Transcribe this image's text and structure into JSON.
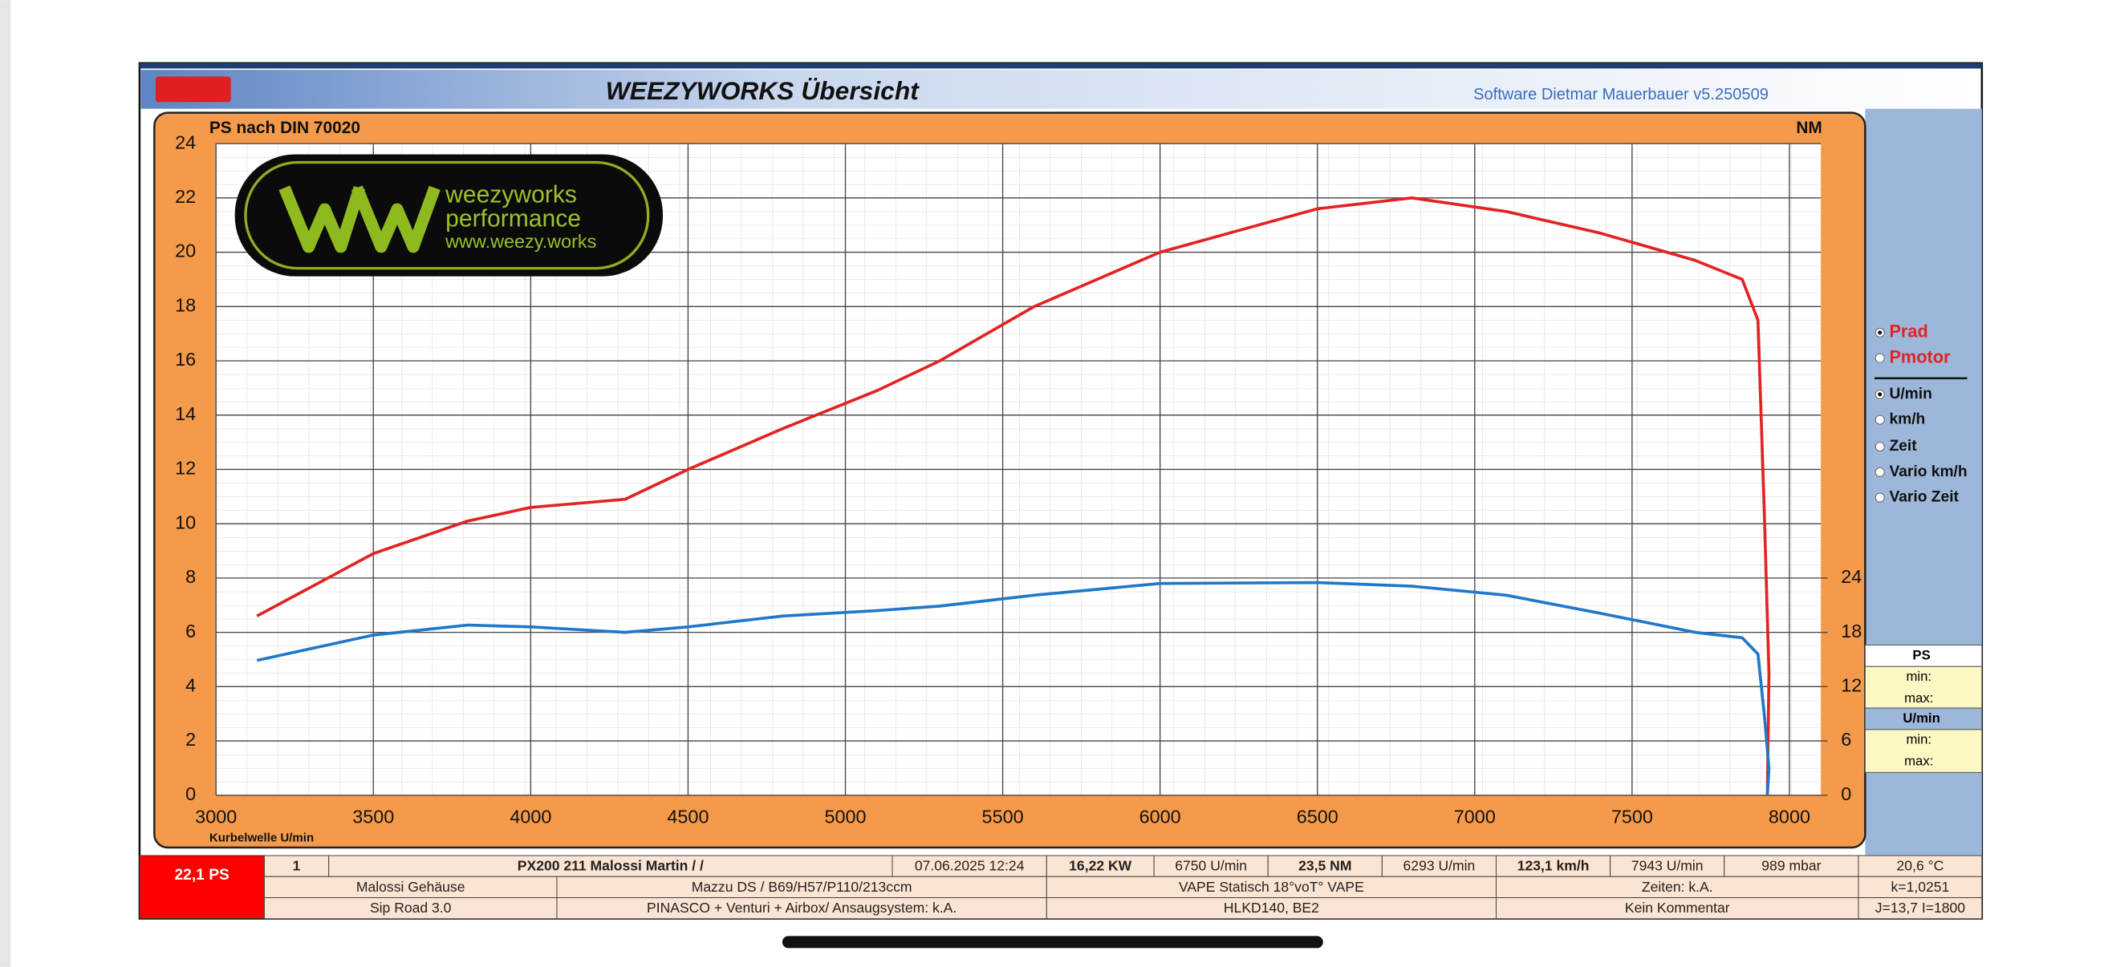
{
  "chart_data": {
    "type": "line",
    "title": "WEEZYWORKS  Übersicht",
    "y_label": "PS nach DIN 70020",
    "y2_label": "NM",
    "x_label": "Kurbelwelle U/min",
    "x": [
      3130,
      3500,
      3800,
      4000,
      4300,
      4500,
      4800,
      5100,
      5300,
      5600,
      6000,
      6500,
      6800,
      7100,
      7400,
      7700,
      7850,
      7900,
      7920,
      7935,
      7930
    ],
    "series": [
      {
        "name": "Prad",
        "color": "#e32222",
        "values": [
          6.6,
          8.9,
          10.1,
          10.6,
          10.9,
          12.0,
          13.5,
          14.9,
          16.0,
          18.0,
          20.0,
          21.6,
          22.0,
          21.5,
          20.7,
          19.7,
          19.0,
          17.5,
          10.5,
          4.5,
          0
        ]
      },
      {
        "name": "NM",
        "color": "#1f78c8",
        "axis": "y2",
        "values": [
          14.9,
          17.7,
          18.8,
          18.6,
          18.0,
          18.6,
          19.8,
          20.4,
          20.9,
          22.1,
          23.4,
          23.5,
          23.1,
          22.1,
          20.1,
          18.0,
          17.4,
          15.6,
          9.0,
          3.0,
          0
        ]
      }
    ],
    "xlim": [
      3000,
      8100
    ],
    "xticks": [
      3000,
      3500,
      4000,
      4500,
      5000,
      5500,
      6000,
      6500,
      7000,
      7500,
      8000
    ],
    "ylim": [
      0,
      24
    ],
    "yticks": [
      0,
      2,
      4,
      6,
      8,
      10,
      12,
      14,
      16,
      18,
      20,
      22,
      24
    ],
    "y2lim": [
      0,
      72
    ],
    "y2ticks": [
      0,
      6,
      12,
      18,
      24
    ],
    "grid": true
  },
  "header": {
    "software": "Software Dietmar Mauerbauer v5.250509"
  },
  "logo": {
    "line1": "weezyworks",
    "line2": "performance",
    "line3": "www.weezy.works"
  },
  "panel": {
    "options": [
      {
        "label": "Prad",
        "checked": true
      },
      {
        "label": "Pmotor",
        "checked": false
      },
      {
        "label": "U/min",
        "checked": true
      },
      {
        "label": "km/h",
        "checked": false
      },
      {
        "label": "Zeit",
        "checked": false
      },
      {
        "label": "Vario km/h",
        "checked": false
      },
      {
        "label": "Vario Zeit",
        "checked": false
      }
    ],
    "ps_header": "PS",
    "ps_min": "min:",
    "ps_max": "max:",
    "rpm_header": "U/min",
    "rpm_min": "min:",
    "rpm_max": "max:"
  },
  "table": {
    "peak": "22,1 PS",
    "rows": [
      [
        "1",
        "PX200 211 Malossi Martin /  /",
        "07.06.2025 12:24",
        "16,22  KW",
        "6750  U/min",
        "23,5  NM",
        "6293  U/min",
        "123,1 km/h",
        "7943  U/min",
        "989  mbar",
        "20,6 °C"
      ],
      [
        "Malossi Gehäuse",
        "Mazzu DS  / B69/H57/P110/213ccm",
        "VAPE Statisch 18°voT° VAPE",
        "Zeiten: k.A.",
        "k=1,0251"
      ],
      [
        "Sip Road 3.0",
        "PINASCO + Venturi + Airbox/ Ansaugsystem: k.A.",
        "HLKD140, BE2",
        "Kein Kommentar",
        "J=13,7 I=1800"
      ]
    ]
  }
}
